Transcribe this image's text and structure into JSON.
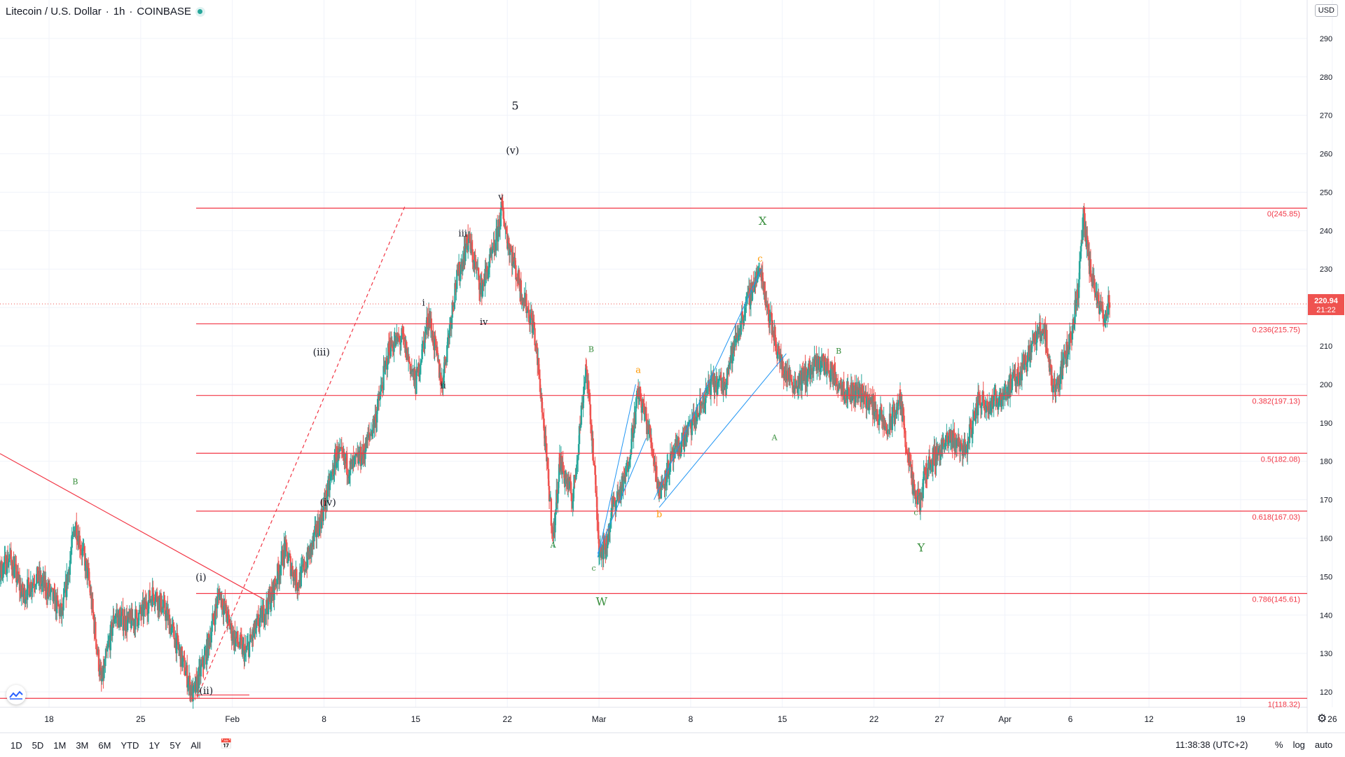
{
  "header": {
    "symbol_title": "Litecoin / U.S. Dollar",
    "sep": "·",
    "interval": "1h",
    "exchange": "COINBASE"
  },
  "currency_button": "USD",
  "price_axis": {
    "ticks": [
      120,
      130,
      140,
      150,
      160,
      170,
      180,
      190,
      200,
      210,
      220,
      230,
      240,
      250,
      260,
      270,
      280,
      290
    ],
    "ymin": 116,
    "ymax": 300
  },
  "time_axis": {
    "labels": [
      {
        "t": "18",
        "d": 18
      },
      {
        "t": "25",
        "d": 25
      },
      {
        "t": "Feb",
        "d": 32
      },
      {
        "t": "8",
        "d": 39
      },
      {
        "t": "15",
        "d": 46
      },
      {
        "t": "22",
        "d": 53
      },
      {
        "t": "Mar",
        "d": 60
      },
      {
        "t": "8",
        "d": 67
      },
      {
        "t": "15",
        "d": 74
      },
      {
        "t": "22",
        "d": 81
      },
      {
        "t": "27",
        "d": 86
      },
      {
        "t": "Apr",
        "d": 91
      },
      {
        "t": "6",
        "d": 96
      },
      {
        "t": "12",
        "d": 102
      },
      {
        "t": "19",
        "d": 109
      },
      {
        "t": "26",
        "d": 116
      }
    ]
  },
  "last_price": {
    "value": 220.94,
    "label": "220.94",
    "countdown": "21:22",
    "color": "#ef5350"
  },
  "fib_levels": [
    {
      "label": "0(245.85)",
      "value": 245.85
    },
    {
      "label": "0.236(215.75)",
      "value": 215.75
    },
    {
      "label": "0.382(197.13)",
      "value": 197.13
    },
    {
      "label": "0.5(182.08)",
      "value": 182.08
    },
    {
      "label": "0.618(167.03)",
      "value": 167.03
    },
    {
      "label": "0.786(145.61)",
      "value": 145.61
    },
    {
      "label": "1(118.32)",
      "value": 118.32
    }
  ],
  "colors": {
    "up": "#26a69a",
    "down": "#ef5350",
    "fib": "#f23645",
    "channel": "#2196f3",
    "wave_green": "#388e3c",
    "wave_orange": "#ff9800",
    "text": "#131722",
    "grid": "#f0f3fa"
  },
  "wave_labels": [
    {
      "t": "5",
      "d": 53.6,
      "p": 271.5,
      "c": "#131722",
      "s": 16
    },
    {
      "t": "(v)",
      "d": 53.4,
      "p": 260.0,
      "c": "#131722",
      "s": 14
    },
    {
      "t": "v",
      "d": 52.5,
      "p": 248.0,
      "c": "#131722",
      "s": 13
    },
    {
      "t": "iii",
      "d": 49.6,
      "p": 238.5,
      "c": "#131722",
      "s": 13
    },
    {
      "t": "i",
      "d": 46.6,
      "p": 220.5,
      "c": "#131722",
      "s": 13
    },
    {
      "t": "iv",
      "d": 51.2,
      "p": 215.5,
      "c": "#131722",
      "s": 13
    },
    {
      "t": "(iii)",
      "d": 38.8,
      "p": 207.5,
      "c": "#131722",
      "s": 14
    },
    {
      "t": "ii",
      "d": 48.1,
      "p": 199.0,
      "c": "#131722",
      "s": 13
    },
    {
      "t": "(iv)",
      "d": 39.3,
      "p": 168.5,
      "c": "#131722",
      "s": 14
    },
    {
      "t": "(i)",
      "d": 29.6,
      "p": 149.0,
      "c": "#131722",
      "s": 14
    },
    {
      "t": "(ii)",
      "d": 30.0,
      "p": 119.5,
      "c": "#131722",
      "s": 14
    },
    {
      "t": "B",
      "d": 20.0,
      "p": 174.0,
      "c": "#388e3c",
      "s": 11
    },
    {
      "t": "A",
      "d": 56.5,
      "p": 157.5,
      "c": "#388e3c",
      "s": 11
    },
    {
      "t": "B",
      "d": 59.4,
      "p": 208.5,
      "c": "#388e3c",
      "s": 11
    },
    {
      "t": "c",
      "d": 59.6,
      "p": 151.5,
      "c": "#388e3c",
      "s": 11
    },
    {
      "t": "W",
      "d": 60.2,
      "p": 142.5,
      "c": "#388e3c",
      "s": 16
    },
    {
      "t": "a",
      "d": 63.0,
      "p": 203.0,
      "c": "#ff9800",
      "s": 13
    },
    {
      "t": "b",
      "d": 64.6,
      "p": 165.5,
      "c": "#ff9800",
      "s": 13
    },
    {
      "t": "c",
      "d": 72.3,
      "p": 232.0,
      "c": "#ff9800",
      "s": 13
    },
    {
      "t": "X",
      "d": 72.5,
      "p": 241.5,
      "c": "#388e3c",
      "s": 16
    },
    {
      "t": "A",
      "d": 73.4,
      "p": 185.5,
      "c": "#388e3c",
      "s": 11
    },
    {
      "t": "B",
      "d": 78.3,
      "p": 208.0,
      "c": "#388e3c",
      "s": 11
    },
    {
      "t": "c",
      "d": 84.2,
      "p": 166.0,
      "c": "#388e3c",
      "s": 11
    },
    {
      "t": "Y",
      "d": 84.6,
      "p": 156.5,
      "c": "#388e3c",
      "s": 16
    }
  ],
  "chart_data": {
    "type": "candlestick",
    "title": "Litecoin / U.S. Dollar · 1h · COINBASE",
    "price_range": [
      116,
      300
    ],
    "path_points": [
      [
        13,
        140
      ],
      [
        14,
        150
      ],
      [
        15,
        155
      ],
      [
        16,
        145
      ],
      [
        17,
        150
      ],
      [
        18,
        146
      ],
      [
        19,
        140
      ],
      [
        20,
        164
      ],
      [
        21,
        150
      ],
      [
        22,
        122
      ],
      [
        23,
        140
      ],
      [
        24,
        138
      ],
      [
        25,
        140
      ],
      [
        26,
        146
      ],
      [
        27,
        140
      ],
      [
        28,
        130
      ],
      [
        29,
        119
      ],
      [
        30,
        130
      ],
      [
        31,
        146
      ],
      [
        32,
        135
      ],
      [
        33,
        130
      ],
      [
        34,
        138
      ],
      [
        35,
        145
      ],
      [
        36,
        157
      ],
      [
        37,
        148
      ],
      [
        38,
        157
      ],
      [
        39,
        168
      ],
      [
        40,
        182
      ],
      [
        41,
        178
      ],
      [
        42,
        182
      ],
      [
        43,
        192
      ],
      [
        44,
        210
      ],
      [
        45,
        212
      ],
      [
        46,
        200
      ],
      [
        47,
        218
      ],
      [
        48,
        200
      ],
      [
        49,
        225
      ],
      [
        50,
        238
      ],
      [
        51,
        225
      ],
      [
        52,
        235
      ],
      [
        52.6,
        246
      ],
      [
        53,
        238
      ],
      [
        54,
        225
      ],
      [
        55,
        215
      ],
      [
        55.5,
        200
      ],
      [
        56,
        180
      ],
      [
        56.5,
        160
      ],
      [
        57,
        180
      ],
      [
        58,
        170
      ],
      [
        59,
        205
      ],
      [
        59.5,
        185
      ],
      [
        60,
        158
      ],
      [
        60.5,
        157
      ],
      [
        61,
        168
      ],
      [
        62,
        175
      ],
      [
        63,
        198
      ],
      [
        63.5,
        192
      ],
      [
        64,
        185
      ],
      [
        64.6,
        172
      ],
      [
        65.5,
        180
      ],
      [
        66.5,
        186
      ],
      [
        67.5,
        192
      ],
      [
        68.5,
        200
      ],
      [
        69.5,
        200
      ],
      [
        70.5,
        212
      ],
      [
        71,
        218
      ],
      [
        72,
        228
      ],
      [
        72.4,
        229
      ],
      [
        73,
        218
      ],
      [
        74,
        204
      ],
      [
        75,
        200
      ],
      [
        76,
        203
      ],
      [
        77,
        206
      ],
      [
        78,
        202
      ],
      [
        79,
        198
      ],
      [
        80,
        198
      ],
      [
        81,
        194
      ],
      [
        82,
        188
      ],
      [
        83,
        196
      ],
      [
        84,
        172
      ],
      [
        84.5,
        169
      ],
      [
        85,
        178
      ],
      [
        86,
        183
      ],
      [
        87,
        186
      ],
      [
        88,
        183
      ],
      [
        89,
        196
      ],
      [
        90,
        195
      ],
      [
        91,
        198
      ],
      [
        92,
        202
      ],
      [
        93,
        210
      ],
      [
        94,
        215
      ],
      [
        94.6,
        200
      ],
      [
        95,
        200
      ],
      [
        96,
        212
      ],
      [
        96.6,
        225
      ],
      [
        97,
        243
      ],
      [
        97.5,
        230
      ],
      [
        98,
        222
      ],
      [
        98.5,
        218
      ],
      [
        99,
        221
      ]
    ]
  }
}
